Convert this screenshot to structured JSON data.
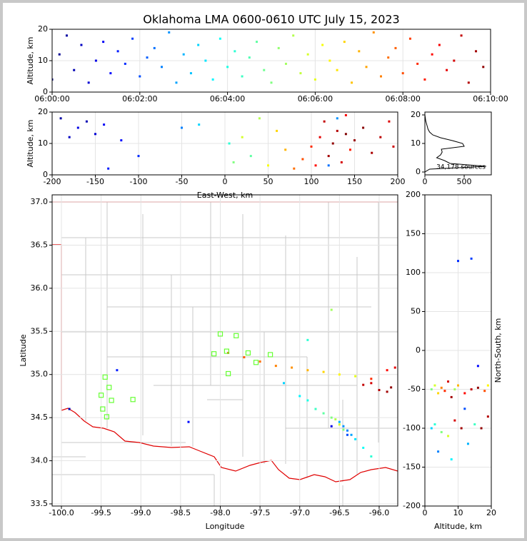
{
  "chart_data": [
    {
      "type": "scatter",
      "title": "Oklahoma LMA 0600-0610 UTC July 15, 2023",
      "ylabel": "Altitude, km",
      "colormap": "jet",
      "grid": true,
      "xlim": [
        0,
        600
      ],
      "ylim": [
        0,
        20
      ],
      "xticks": [
        {
          "value": 0,
          "label": "06:00:00"
        },
        {
          "value": 120,
          "label": "06:02:00"
        },
        {
          "value": 240,
          "label": "06:04:00"
        },
        {
          "value": 360,
          "label": "06:06:00"
        },
        {
          "value": 480,
          "label": "06:08:00"
        },
        {
          "value": 600,
          "label": "06:10:00"
        }
      ],
      "yticks": [
        0,
        10,
        20
      ],
      "x": [
        0,
        10,
        20,
        30,
        40,
        50,
        60,
        70,
        80,
        90,
        100,
        110,
        120,
        130,
        140,
        150,
        160,
        170,
        180,
        190,
        200,
        210,
        220,
        230,
        240,
        250,
        260,
        270,
        280,
        290,
        300,
        310,
        320,
        330,
        340,
        350,
        360,
        370,
        380,
        390,
        400,
        410,
        420,
        430,
        440,
        450,
        460,
        470,
        480,
        490,
        500,
        510,
        520,
        530,
        540,
        550,
        560,
        570,
        580,
        590
      ],
      "y": [
        4,
        12,
        18,
        7,
        15,
        3,
        10,
        16,
        6,
        13,
        9,
        17,
        5,
        11,
        14,
        8,
        19,
        3,
        12,
        6,
        15,
        10,
        4,
        17,
        8,
        13,
        5,
        11,
        16,
        7,
        3,
        14,
        9,
        18,
        6,
        12,
        4,
        15,
        10,
        7,
        16,
        3,
        13,
        8,
        19,
        5,
        11,
        14,
        6,
        17,
        9,
        4,
        12,
        15,
        7,
        10,
        18,
        3,
        13,
        8
      ]
    },
    {
      "type": "scatter",
      "xlabel": "East-West, km",
      "ylabel": "Altitude, km",
      "colormap": "jet",
      "grid": true,
      "xlim": [
        -200,
        200
      ],
      "ylim": [
        0,
        20
      ],
      "xticks": [
        -200,
        -150,
        -100,
        -50,
        0,
        50,
        100,
        150,
        200
      ],
      "yticks": [
        0,
        10,
        20
      ],
      "x": [
        -190,
        -180,
        -170,
        -160,
        -150,
        -140,
        -135,
        -120,
        -100,
        -50,
        -30,
        5,
        10,
        20,
        30,
        40,
        50,
        60,
        70,
        80,
        90,
        100,
        105,
        110,
        115,
        120,
        125,
        130,
        135,
        140,
        145,
        150,
        160,
        170,
        180,
        190,
        195,
        120,
        130,
        140
      ],
      "y": [
        18,
        12,
        15,
        17,
        13,
        16,
        2,
        11,
        6,
        15,
        16,
        10,
        4,
        12,
        6,
        18,
        3,
        14,
        8,
        2,
        5,
        9,
        3,
        12,
        17,
        6,
        10,
        14,
        4,
        19,
        8,
        11,
        15,
        7,
        12,
        17,
        9,
        3,
        18,
        13
      ],
      "t": [
        20,
        40,
        60,
        30,
        50,
        70,
        90,
        80,
        100,
        150,
        200,
        250,
        300,
        350,
        280,
        330,
        370,
        400,
        420,
        460,
        480,
        500,
        520,
        540,
        560,
        580,
        590,
        570,
        550,
        530,
        510,
        585,
        595,
        575,
        565,
        545,
        555,
        140,
        160,
        600
      ]
    },
    {
      "type": "line",
      "annotation": "34,178 sources",
      "color": "#000000",
      "grid": false,
      "xlim": [
        0,
        845
      ],
      "ylim": [
        -1,
        21
      ],
      "xticks": [
        0,
        500
      ],
      "yticks": [
        0,
        10,
        20
      ],
      "y": [
        0,
        1,
        2,
        3,
        4,
        5,
        6,
        7,
        8,
        9,
        10,
        11,
        12,
        13,
        14,
        15,
        16,
        17,
        18,
        19,
        20
      ],
      "x": [
        0,
        60,
        780,
        320,
        250,
        150,
        200,
        220,
        210,
        500,
        480,
        350,
        200,
        100,
        60,
        40,
        30,
        20,
        10,
        5,
        0
      ]
    },
    {
      "type": "map",
      "xlabel": "Longitude",
      "ylabel": "Latitude",
      "colormap": "jet",
      "grid": true,
      "xlim": [
        -100.117,
        -95.766
      ],
      "ylim": [
        33.475,
        37.083
      ],
      "xticks": [
        {
          "value": -100.0,
          "label": "-100.0"
        },
        -99.5,
        {
          "value": -99.0,
          "label": "-99.0"
        },
        -98.5,
        {
          "value": -98.0,
          "label": "-98.0"
        },
        -97.5,
        {
          "value": -97.0,
          "label": "-97.0"
        },
        -96.5,
        {
          "value": -96.0,
          "label": "-96.0"
        }
      ],
      "yticks": [
        33.5,
        {
          "value": 34.0,
          "label": "34.0"
        },
        34.5,
        {
          "value": 35.0,
          "label": "35.0"
        },
        35.5,
        {
          "value": 36.0,
          "label": "36.0"
        },
        36.5,
        {
          "value": 37.0,
          "label": "37.0"
        }
      ],
      "x": [
        -97.9,
        -97.7,
        -97.5,
        -97.3,
        -97.1,
        -96.9,
        -96.7,
        -96.5,
        -96.3,
        -96.1,
        -95.9,
        -95.8,
        -97.2,
        -97.0,
        -96.9,
        -96.8,
        -96.7,
        -96.6,
        -96.5,
        -96.45,
        -96.4,
        -96.35,
        -96.3,
        -96.2,
        -96.1,
        -96.55,
        -96.5,
        -96.45,
        -96.6,
        -96.4,
        -96.2,
        -96.0,
        -95.9,
        -95.85,
        -96.1,
        -99.9,
        -99.3,
        -98.4,
        -96.9,
        -96.6
      ],
      "y": [
        35.25,
        35.2,
        35.15,
        35.1,
        35.08,
        35.05,
        35.03,
        35.0,
        34.98,
        34.95,
        35.05,
        35.08,
        34.9,
        34.75,
        34.7,
        34.6,
        34.55,
        34.5,
        34.45,
        34.4,
        34.35,
        34.3,
        34.25,
        34.15,
        34.05,
        34.48,
        34.42,
        34.36,
        34.4,
        34.3,
        34.88,
        34.82,
        34.8,
        34.85,
        34.9,
        34.6,
        35.05,
        34.45,
        35.4,
        35.75
      ],
      "t": [
        480,
        470,
        460,
        450,
        440,
        420,
        400,
        380,
        360,
        500,
        520,
        540,
        200,
        220,
        240,
        260,
        280,
        300,
        180,
        160,
        150,
        170,
        210,
        230,
        250,
        330,
        350,
        300,
        60,
        120,
        560,
        570,
        580,
        590,
        550,
        30,
        90,
        80,
        250,
        320
      ],
      "stations": {
        "color": "#66ff33",
        "x": [
          -99.45,
          -99.4,
          -99.5,
          -99.37,
          -99.48,
          -99.43,
          -99.1,
          -98.08,
          -97.92,
          -97.8,
          -98.0,
          -97.65,
          -97.55,
          -97.37,
          -97.9
        ],
        "y": [
          34.97,
          34.85,
          34.76,
          34.7,
          34.6,
          34.51,
          34.71,
          35.24,
          35.27,
          35.45,
          35.47,
          35.25,
          35.14,
          35.23,
          35.01
        ]
      }
    },
    {
      "type": "scatter",
      "xlabel": "Altitude, km",
      "ylabel": "North-South, km",
      "ylabel_side": "right",
      "colormap": "jet",
      "grid": true,
      "xlim": [
        0,
        20
      ],
      "ylim": [
        -200,
        200
      ],
      "xticks": [
        0,
        10,
        20
      ],
      "yticks": [
        -200,
        -150,
        -100,
        -50,
        0,
        50,
        100,
        150,
        200
      ],
      "x": [
        2,
        3,
        4,
        5,
        6,
        7,
        8,
        9,
        10,
        12,
        14,
        16,
        18,
        19,
        2,
        3,
        5,
        7,
        9,
        11,
        13,
        15,
        17,
        19,
        4,
        8,
        12,
        16,
        10,
        14
      ],
      "y": [
        -50,
        -45,
        -55,
        -48,
        -52,
        -40,
        -60,
        -50,
        -45,
        -55,
        -50,
        -48,
        -52,
        -45,
        -100,
        -95,
        -105,
        -110,
        -90,
        -100,
        -120,
        -95,
        -100,
        -85,
        -130,
        -140,
        -75,
        -20,
        115,
        118
      ],
      "t": [
        300,
        350,
        400,
        450,
        500,
        550,
        580,
        320,
        420,
        520,
        560,
        590,
        480,
        380,
        200,
        250,
        300,
        350,
        550,
        580,
        180,
        260,
        590,
        570,
        150,
        220,
        120,
        80,
        100,
        110
      ]
    }
  ]
}
